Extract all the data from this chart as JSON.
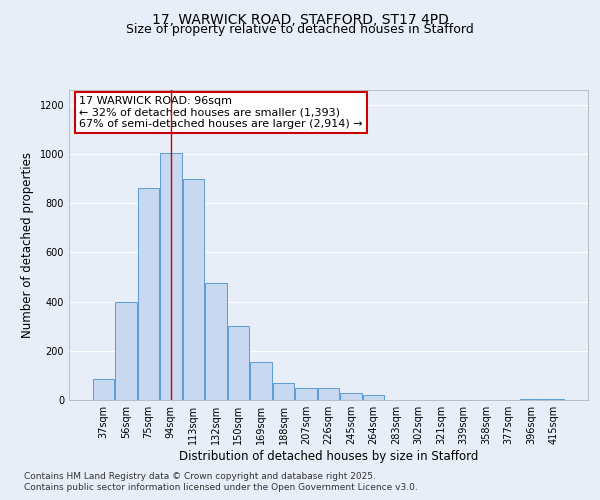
{
  "title_line1": "17, WARWICK ROAD, STAFFORD, ST17 4PD",
  "title_line2": "Size of property relative to detached houses in Stafford",
  "xlabel": "Distribution of detached houses by size in Stafford",
  "ylabel": "Number of detached properties",
  "categories": [
    "37sqm",
    "56sqm",
    "75sqm",
    "94sqm",
    "113sqm",
    "132sqm",
    "150sqm",
    "169sqm",
    "188sqm",
    "207sqm",
    "226sqm",
    "245sqm",
    "264sqm",
    "283sqm",
    "302sqm",
    "321sqm",
    "339sqm",
    "358sqm",
    "377sqm",
    "396sqm",
    "415sqm"
  ],
  "values": [
    85,
    400,
    860,
    1005,
    900,
    475,
    300,
    155,
    70,
    50,
    50,
    30,
    20,
    0,
    0,
    0,
    0,
    0,
    0,
    5,
    5
  ],
  "bar_color": "#c8d8f0",
  "bar_edge_color": "#5b9bd5",
  "highlight_bar_index": 3,
  "highlight_line_color": "#cc0000",
  "annotation_title": "17 WARWICK ROAD: 96sqm",
  "annotation_line1": "← 32% of detached houses are smaller (1,393)",
  "annotation_line2": "67% of semi-detached houses are larger (2,914) →",
  "annotation_box_facecolor": "white",
  "annotation_box_edgecolor": "#cc0000",
  "ylim": [
    0,
    1260
  ],
  "yticks": [
    0,
    200,
    400,
    600,
    800,
    1000,
    1200
  ],
  "footer_line1": "Contains HM Land Registry data © Crown copyright and database right 2025.",
  "footer_line2": "Contains public sector information licensed under the Open Government Licence v3.0.",
  "bg_color": "#e8eef8",
  "plot_bg_color": "#e8eef8",
  "grid_color": "#ffffff",
  "title_fontsize": 10,
  "subtitle_fontsize": 9,
  "axis_label_fontsize": 8.5,
  "tick_fontsize": 7,
  "annotation_fontsize": 8,
  "footer_fontsize": 6.5
}
